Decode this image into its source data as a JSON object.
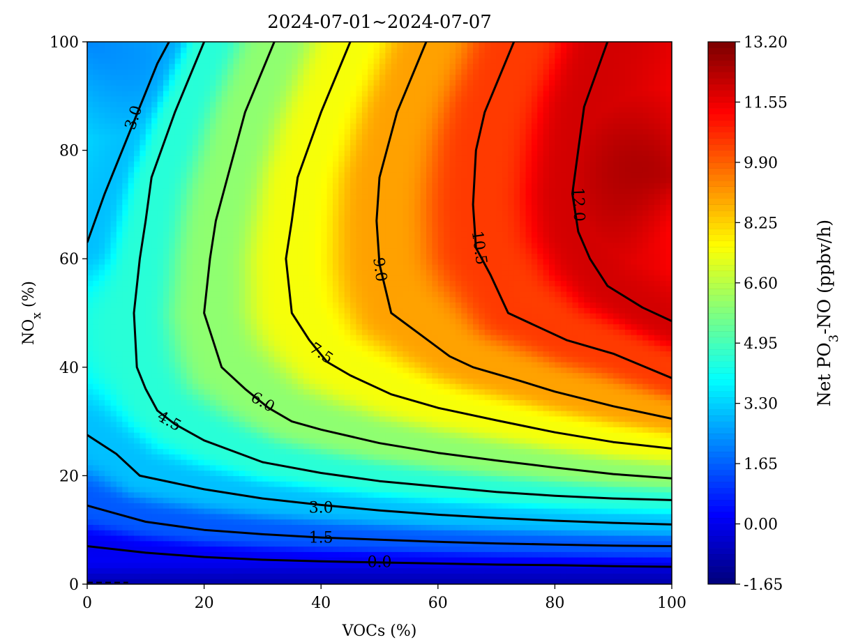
{
  "chart_data": {
    "type": "contour",
    "title": "2024-07-01~2024-07-07",
    "xlabel": "VOCs (%)",
    "ylabel": {
      "main": "NO",
      "sub": "x",
      "tail": " (%)"
    },
    "colorbar_label": {
      "pre": "Net PO",
      "sub": "3",
      "post": "-NO (ppbv/h)"
    },
    "xlim": [
      0,
      100
    ],
    "ylim": [
      0,
      100
    ],
    "x_ticks": [
      0,
      20,
      40,
      60,
      80,
      100
    ],
    "y_ticks": [
      0,
      20,
      40,
      60,
      80,
      100
    ],
    "x_tick_labels": [
      "0",
      "20",
      "40",
      "60",
      "80",
      "100"
    ],
    "y_tick_labels": [
      "0",
      "20",
      "40",
      "60",
      "80",
      "100"
    ],
    "colorbar": {
      "min": -1.65,
      "max": 13.2,
      "colormap": "jet",
      "ticks": [
        -1.65,
        0.0,
        1.65,
        3.3,
        4.95,
        6.6,
        8.25,
        9.9,
        11.55,
        13.2
      ],
      "tick_labels": [
        "-1.65",
        "0.00",
        "1.65",
        "3.30",
        "4.95",
        "6.60",
        "8.25",
        "9.90",
        "11.55",
        "13.20"
      ]
    },
    "contour_levels": [
      {
        "level": 0.0,
        "label": "0.0",
        "points": [
          [
            0,
            7
          ],
          [
            10,
            5.8
          ],
          [
            20,
            5
          ],
          [
            30,
            4.5
          ],
          [
            40,
            4.2
          ],
          [
            50,
            4
          ],
          [
            60,
            3.8
          ],
          [
            70,
            3.6
          ],
          [
            80,
            3.5
          ],
          [
            90,
            3.3
          ],
          [
            100,
            3.2
          ]
        ]
      },
      {
        "level": 1.5,
        "label": "1.5",
        "points": [
          [
            0,
            14.5
          ],
          [
            5,
            13
          ],
          [
            10,
            11.5
          ],
          [
            20,
            10
          ],
          [
            30,
            9.2
          ],
          [
            40,
            8.6
          ],
          [
            50,
            8.2
          ],
          [
            60,
            7.8
          ],
          [
            70,
            7.5
          ],
          [
            80,
            7.3
          ],
          [
            90,
            7.1
          ],
          [
            100,
            7
          ]
        ]
      },
      {
        "level": 3.0,
        "label": "3.0",
        "points": [
          [
            0,
            27.5
          ],
          [
            5,
            24
          ],
          [
            9,
            20
          ],
          [
            20,
            17.5
          ],
          [
            30,
            15.8
          ],
          [
            40,
            14.6
          ],
          [
            50,
            13.6
          ],
          [
            60,
            12.8
          ],
          [
            70,
            12.2
          ],
          [
            80,
            11.7
          ],
          [
            90,
            11.3
          ],
          [
            100,
            11
          ]
        ]
      },
      {
        "level": 3.0,
        "label": "3.0",
        "points": [
          [
            0,
            63
          ],
          [
            3,
            72
          ],
          [
            6,
            80
          ],
          [
            9,
            88
          ],
          [
            12,
            96
          ],
          [
            14,
            100
          ]
        ]
      },
      {
        "level": 4.5,
        "label": "4.5",
        "points": [
          [
            20,
            100
          ],
          [
            15,
            87
          ],
          [
            11,
            75
          ],
          [
            10,
            67
          ],
          [
            9,
            60
          ],
          [
            8,
            50
          ],
          [
            8.5,
            40
          ],
          [
            10,
            36
          ],
          [
            12,
            32
          ],
          [
            15,
            29.5
          ],
          [
            20,
            26.5
          ],
          [
            30,
            22.5
          ],
          [
            40,
            20.5
          ],
          [
            50,
            19
          ],
          [
            60,
            18
          ],
          [
            70,
            17
          ],
          [
            80,
            16.3
          ],
          [
            90,
            15.8
          ],
          [
            100,
            15.5
          ]
        ]
      },
      {
        "level": 6.0,
        "label": "6.0",
        "points": [
          [
            32,
            100
          ],
          [
            27,
            87
          ],
          [
            24,
            75
          ],
          [
            22,
            67
          ],
          [
            21,
            60
          ],
          [
            20,
            50
          ],
          [
            21.5,
            45
          ],
          [
            23,
            40
          ],
          [
            27,
            36
          ],
          [
            31,
            32.5
          ],
          [
            35,
            30
          ],
          [
            40,
            28.5
          ],
          [
            50,
            26
          ],
          [
            60,
            24.2
          ],
          [
            70,
            22.8
          ],
          [
            80,
            21.5
          ],
          [
            90,
            20.3
          ],
          [
            100,
            19.5
          ]
        ]
      },
      {
        "level": 7.5,
        "label": "7.5",
        "points": [
          [
            45,
            100
          ],
          [
            40,
            87
          ],
          [
            36,
            75
          ],
          [
            35,
            67
          ],
          [
            34,
            60
          ],
          [
            35,
            50
          ],
          [
            38,
            45
          ],
          [
            41,
            41
          ],
          [
            45,
            38.5
          ],
          [
            52,
            35
          ],
          [
            60,
            32.5
          ],
          [
            70,
            30.2
          ],
          [
            80,
            28
          ],
          [
            90,
            26.2
          ],
          [
            100,
            25
          ]
        ]
      },
      {
        "level": 9.0,
        "label": "9.0",
        "points": [
          [
            58,
            100
          ],
          [
            53,
            87
          ],
          [
            50,
            75
          ],
          [
            49.5,
            67
          ],
          [
            50,
            59
          ],
          [
            52,
            50
          ],
          [
            57,
            46
          ],
          [
            62,
            42
          ],
          [
            66,
            40
          ],
          [
            74,
            37.5
          ],
          [
            80,
            35.5
          ],
          [
            90,
            32.8
          ],
          [
            100,
            30.5
          ]
        ]
      },
      {
        "level": 10.5,
        "label": "10.5",
        "points": [
          [
            73,
            100
          ],
          [
            68,
            87
          ],
          [
            66.5,
            80
          ],
          [
            66,
            70
          ],
          [
            66.5,
            62
          ],
          [
            69,
            57
          ],
          [
            72,
            50
          ],
          [
            78,
            47
          ],
          [
            82,
            45
          ],
          [
            90,
            42.5
          ],
          [
            100,
            38
          ]
        ]
      },
      {
        "level": 12.0,
        "label": "12.0",
        "points": [
          [
            89,
            100
          ],
          [
            85,
            88
          ],
          [
            84,
            80
          ],
          [
            83,
            72
          ],
          [
            84,
            65
          ],
          [
            86,
            60
          ],
          [
            89,
            55
          ],
          [
            95,
            51
          ],
          [
            100,
            48.5
          ]
        ]
      }
    ],
    "contour_labels": [
      {
        "text": "3.0",
        "x": 8,
        "y": 86,
        "angle": -72
      },
      {
        "text": "4.5",
        "x": 14,
        "y": 30,
        "angle": 30
      },
      {
        "text": "6.0",
        "x": 30,
        "y": 33.5,
        "angle": 30
      },
      {
        "text": "7.5",
        "x": 40,
        "y": 42.5,
        "angle": 35
      },
      {
        "text": "9.0",
        "x": 50,
        "y": 58,
        "angle": 82
      },
      {
        "text": "10.5",
        "x": 67,
        "y": 62,
        "angle": 82
      },
      {
        "text": "12.0",
        "x": 84,
        "y": 70,
        "angle": 88
      },
      {
        "text": "3.0",
        "x": 40,
        "y": 14,
        "angle": 0
      },
      {
        "text": "1.5",
        "x": 40,
        "y": 8.5,
        "angle": 0
      },
      {
        "text": "0.0",
        "x": 50,
        "y": 4,
        "angle": 0
      }
    ]
  }
}
